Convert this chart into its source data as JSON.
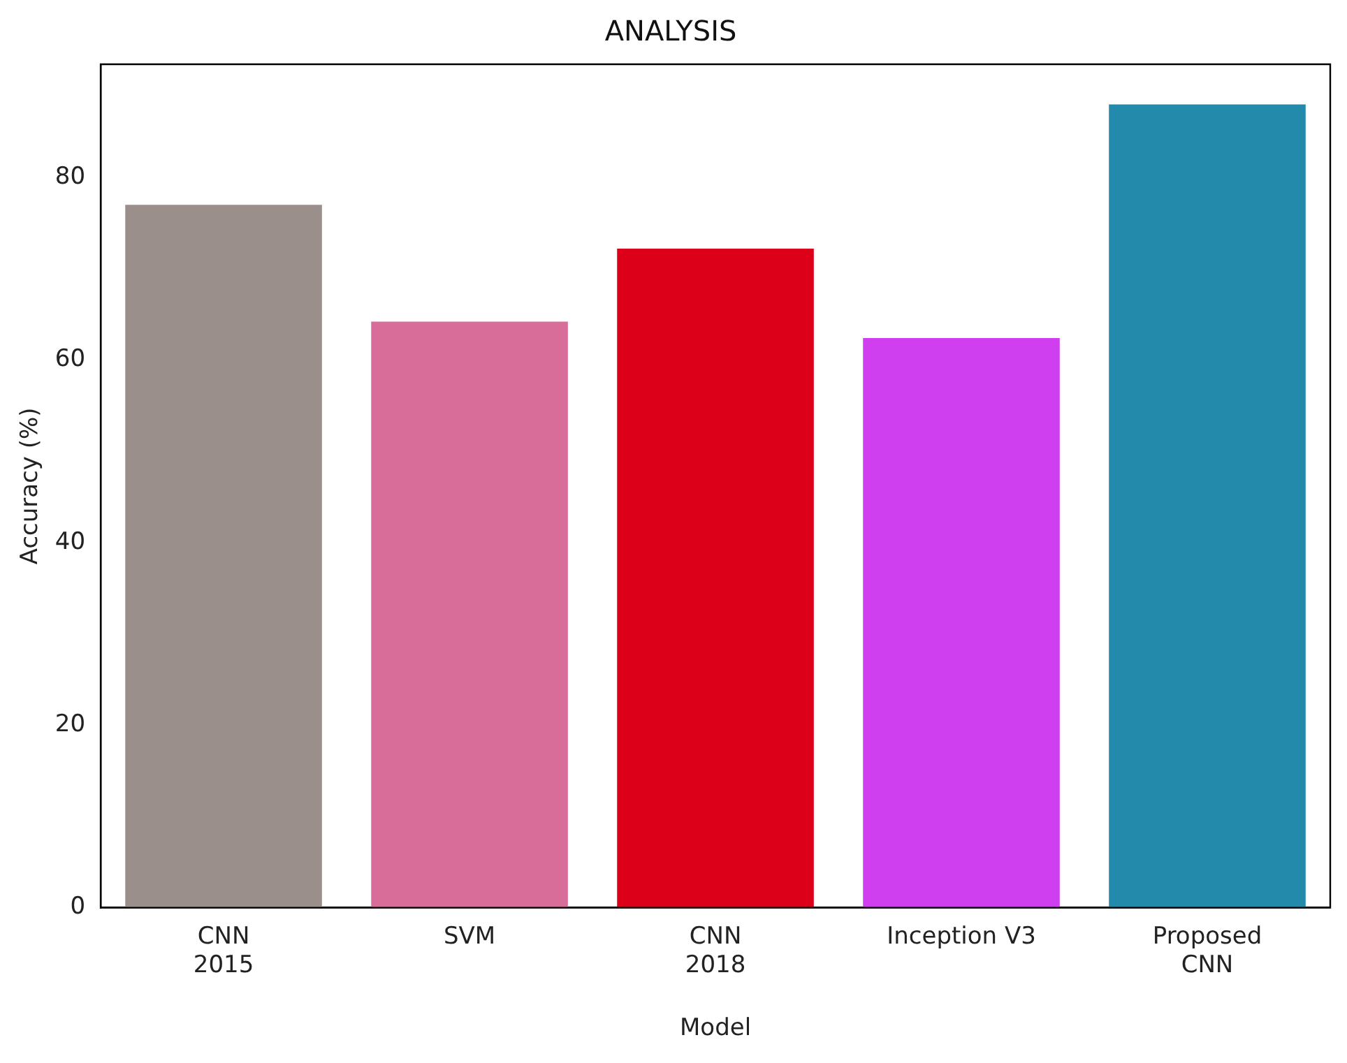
{
  "chart_data": {
    "type": "bar",
    "title": "ANALYSIS",
    "xlabel": "Model",
    "ylabel": "Accuracy (%)",
    "categories": [
      "CNN\n2015",
      "SVM",
      "CNN\n2018",
      "Inception V3",
      "Proposed\nCNN"
    ],
    "values": [
      77,
      64.2,
      72.2,
      62.4,
      88
    ],
    "colors": [
      "#9a8f8a",
      "#d96d9a",
      "#dc0018",
      "#cf3ff0",
      "#238aac"
    ],
    "ylim": [
      0,
      92.4
    ],
    "yticks": [
      0,
      20,
      40,
      60,
      80
    ],
    "grid": false,
    "legend": false
  }
}
